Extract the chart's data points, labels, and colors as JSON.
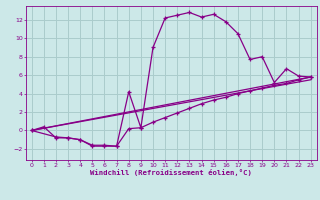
{
  "xlabel": "Windchill (Refroidissement éolien,°C)",
  "bg_color": "#cce8e8",
  "grid_color": "#aacccc",
  "line_color": "#880088",
  "xlim": [
    -0.5,
    23.5
  ],
  "ylim": [
    -3.2,
    13.5
  ],
  "xticks": [
    0,
    1,
    2,
    3,
    4,
    5,
    6,
    7,
    8,
    9,
    10,
    11,
    12,
    13,
    14,
    15,
    16,
    17,
    18,
    19,
    20,
    21,
    22,
    23
  ],
  "yticks": [
    -2,
    0,
    2,
    4,
    6,
    8,
    10,
    12
  ],
  "curve1_x": [
    0,
    1,
    2,
    3,
    4,
    5,
    6,
    7,
    8,
    9,
    10,
    11,
    12,
    13,
    14,
    15,
    16,
    17,
    18,
    19,
    20,
    21,
    22,
    23
  ],
  "curve1_y": [
    0,
    0.4,
    -0.8,
    -0.8,
    -1.0,
    -1.7,
    -1.7,
    -1.7,
    4.2,
    0.3,
    9.0,
    12.2,
    12.5,
    12.8,
    12.3,
    12.6,
    11.8,
    10.5,
    7.7,
    8.0,
    5.2,
    6.7,
    5.9,
    5.8
  ],
  "curve2_x": [
    0,
    2,
    3,
    4,
    5,
    6,
    7,
    8,
    9,
    10,
    11,
    12,
    13,
    14,
    15,
    16,
    17,
    18,
    19,
    20,
    21,
    22,
    23
  ],
  "curve2_y": [
    0,
    -0.7,
    -0.8,
    -1.0,
    -1.6,
    -1.6,
    -1.7,
    0.2,
    0.3,
    0.9,
    1.4,
    1.9,
    2.4,
    2.9,
    3.3,
    3.6,
    4.0,
    4.3,
    4.6,
    4.9,
    5.1,
    5.5,
    5.8
  ],
  "line1_x": [
    0,
    23
  ],
  "line1_y": [
    0,
    5.8
  ],
  "line2_x": [
    0,
    23
  ],
  "line2_y": [
    0,
    5.5
  ]
}
